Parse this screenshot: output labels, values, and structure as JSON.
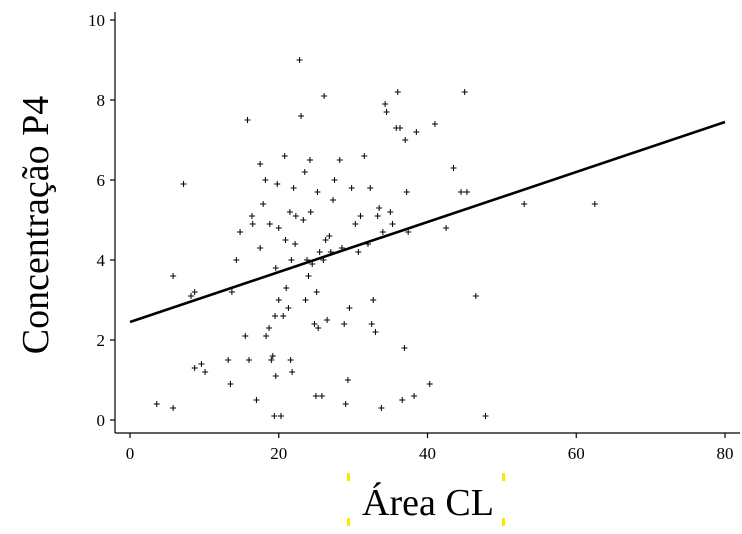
{
  "chart_data": {
    "type": "scatter",
    "title": "",
    "xlabel": "Área CL",
    "ylabel": "Concentração P4",
    "xlim": [
      0,
      80
    ],
    "ylim": [
      0,
      10
    ],
    "xticks": [
      0,
      20,
      40,
      60,
      80
    ],
    "yticks": [
      0,
      2,
      4,
      6,
      8,
      10
    ],
    "grid": false,
    "legend": "none",
    "marker": "+",
    "points": [
      [
        3.6,
        0.4
      ],
      [
        5.8,
        0.3
      ],
      [
        5.8,
        3.6
      ],
      [
        7.2,
        5.9
      ],
      [
        8.2,
        3.1
      ],
      [
        8.7,
        3.2
      ],
      [
        8.7,
        1.3
      ],
      [
        9.6,
        1.4
      ],
      [
        10.1,
        1.2
      ],
      [
        13.2,
        1.5
      ],
      [
        13.5,
        0.9
      ],
      [
        13.7,
        3.2
      ],
      [
        14.3,
        4.0
      ],
      [
        14.8,
        4.7
      ],
      [
        15.5,
        2.1
      ],
      [
        15.8,
        7.5
      ],
      [
        16.0,
        1.5
      ],
      [
        16.4,
        5.1
      ],
      [
        16.5,
        4.9
      ],
      [
        17.0,
        0.5
      ],
      [
        17.5,
        4.3
      ],
      [
        17.5,
        6.4
      ],
      [
        17.9,
        5.4
      ],
      [
        18.2,
        6.0
      ],
      [
        18.3,
        2.1
      ],
      [
        18.7,
        2.3
      ],
      [
        18.8,
        4.9
      ],
      [
        19.0,
        1.5
      ],
      [
        19.2,
        1.6
      ],
      [
        19.4,
        0.1
      ],
      [
        19.5,
        2.6
      ],
      [
        19.6,
        1.1
      ],
      [
        19.6,
        3.8
      ],
      [
        19.8,
        5.9
      ],
      [
        20.0,
        3.0
      ],
      [
        20.0,
        4.8
      ],
      [
        20.3,
        0.1
      ],
      [
        20.6,
        2.6
      ],
      [
        20.8,
        6.6
      ],
      [
        20.9,
        4.5
      ],
      [
        21.0,
        3.3
      ],
      [
        21.3,
        2.8
      ],
      [
        21.5,
        5.2
      ],
      [
        21.6,
        1.5
      ],
      [
        21.7,
        4.0
      ],
      [
        21.8,
        1.2
      ],
      [
        22.0,
        5.8
      ],
      [
        22.2,
        4.4
      ],
      [
        22.3,
        5.1
      ],
      [
        22.8,
        9.0
      ],
      [
        23.0,
        7.6
      ],
      [
        23.3,
        5.0
      ],
      [
        23.5,
        6.2
      ],
      [
        23.6,
        3.0
      ],
      [
        23.8,
        4.0
      ],
      [
        24.0,
        3.6
      ],
      [
        24.2,
        6.5
      ],
      [
        24.3,
        5.2
      ],
      [
        24.5,
        3.9
      ],
      [
        24.8,
        2.4
      ],
      [
        25.0,
        0.6
      ],
      [
        25.1,
        3.2
      ],
      [
        25.2,
        5.7
      ],
      [
        25.3,
        2.3
      ],
      [
        25.5,
        4.2
      ],
      [
        25.8,
        0.6
      ],
      [
        26.0,
        4.0
      ],
      [
        26.1,
        8.1
      ],
      [
        26.3,
        4.5
      ],
      [
        26.5,
        2.5
      ],
      [
        26.8,
        4.6
      ],
      [
        27.0,
        4.2
      ],
      [
        27.3,
        5.5
      ],
      [
        27.5,
        6.0
      ],
      [
        28.2,
        6.5
      ],
      [
        28.5,
        4.3
      ],
      [
        28.8,
        2.4
      ],
      [
        29.0,
        0.4
      ],
      [
        29.3,
        1.0
      ],
      [
        29.5,
        2.8
      ],
      [
        29.8,
        5.8
      ],
      [
        30.3,
        4.9
      ],
      [
        30.7,
        4.2
      ],
      [
        31.0,
        5.1
      ],
      [
        31.5,
        6.6
      ],
      [
        32.0,
        4.4
      ],
      [
        32.3,
        5.8
      ],
      [
        32.5,
        2.4
      ],
      [
        32.7,
        3.0
      ],
      [
        33.0,
        2.2
      ],
      [
        33.3,
        5.1
      ],
      [
        33.5,
        5.3
      ],
      [
        33.8,
        0.3
      ],
      [
        34.0,
        4.7
      ],
      [
        34.3,
        7.9
      ],
      [
        34.5,
        7.7
      ],
      [
        35.0,
        5.2
      ],
      [
        35.3,
        4.9
      ],
      [
        35.8,
        7.3
      ],
      [
        36.0,
        8.2
      ],
      [
        36.3,
        7.3
      ],
      [
        36.6,
        0.5
      ],
      [
        36.9,
        1.8
      ],
      [
        37.0,
        7.0
      ],
      [
        37.2,
        5.7
      ],
      [
        37.4,
        4.7
      ],
      [
        38.2,
        0.6
      ],
      [
        38.5,
        7.2
      ],
      [
        40.3,
        0.9
      ],
      [
        41.0,
        7.4
      ],
      [
        42.5,
        4.8
      ],
      [
        43.5,
        6.3
      ],
      [
        44.5,
        5.7
      ],
      [
        45.0,
        8.2
      ],
      [
        45.3,
        5.7
      ],
      [
        46.5,
        3.1
      ],
      [
        47.8,
        0.1
      ],
      [
        53.0,
        5.4
      ],
      [
        62.5,
        5.4
      ]
    ],
    "regression_line": {
      "x": [
        0,
        80
      ],
      "y": [
        2.45,
        7.45
      ]
    }
  }
}
